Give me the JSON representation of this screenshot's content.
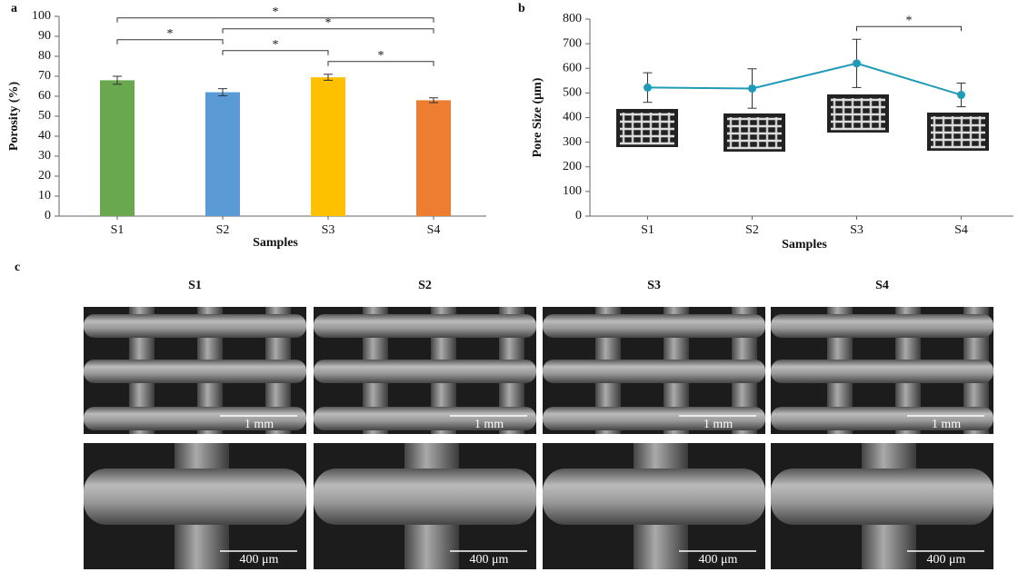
{
  "chart_data": [
    {
      "type": "bar",
      "panel": "a",
      "categories": [
        "S1",
        "S2",
        "S3",
        "S4"
      ],
      "values": [
        68,
        62,
        69.5,
        58
      ],
      "errors": [
        2,
        1.8,
        1.5,
        1.2
      ],
      "colors": [
        "#6aa84f",
        "#5b9bd5",
        "#ffc000",
        "#ed7d31"
      ],
      "ylim": [
        0,
        100
      ],
      "yticks": [
        0,
        10,
        20,
        30,
        40,
        50,
        60,
        70,
        80,
        90,
        100
      ],
      "x_label": "Samples",
      "y_label": "Porosity (%)",
      "significance": [
        {
          "from": "S3",
          "to": "S4",
          "label": "*"
        },
        {
          "from": "S2",
          "to": "S3",
          "label": "*"
        },
        {
          "from": "S1",
          "to": "S2",
          "label": "*"
        },
        {
          "from": "S2",
          "to": "S4",
          "label": "*"
        },
        {
          "from": "S1",
          "to": "S4",
          "label": "*"
        }
      ]
    },
    {
      "type": "line",
      "panel": "b",
      "categories": [
        "S1",
        "S2",
        "S3",
        "S4"
      ],
      "values": [
        522,
        518,
        620,
        492
      ],
      "errors": [
        60,
        80,
        98,
        48
      ],
      "color": "#1f9bb8",
      "ylim": [
        0,
        800
      ],
      "yticks": [
        0,
        100,
        200,
        300,
        400,
        500,
        600,
        700,
        800
      ],
      "x_label": "Samples",
      "y_label": "Pore Size (μm)",
      "significance": [
        {
          "from": "S3",
          "to": "S4",
          "label": "*"
        }
      ]
    }
  ],
  "sem": {
    "panel": "c",
    "columns": [
      "S1",
      "S2",
      "S3",
      "S4"
    ],
    "scale_bars": [
      [
        "1 mm",
        "1 mm",
        "1 mm",
        "1 mm"
      ],
      [
        "400 μm",
        "400 μm",
        "400 μm",
        "400 μm"
      ]
    ]
  }
}
